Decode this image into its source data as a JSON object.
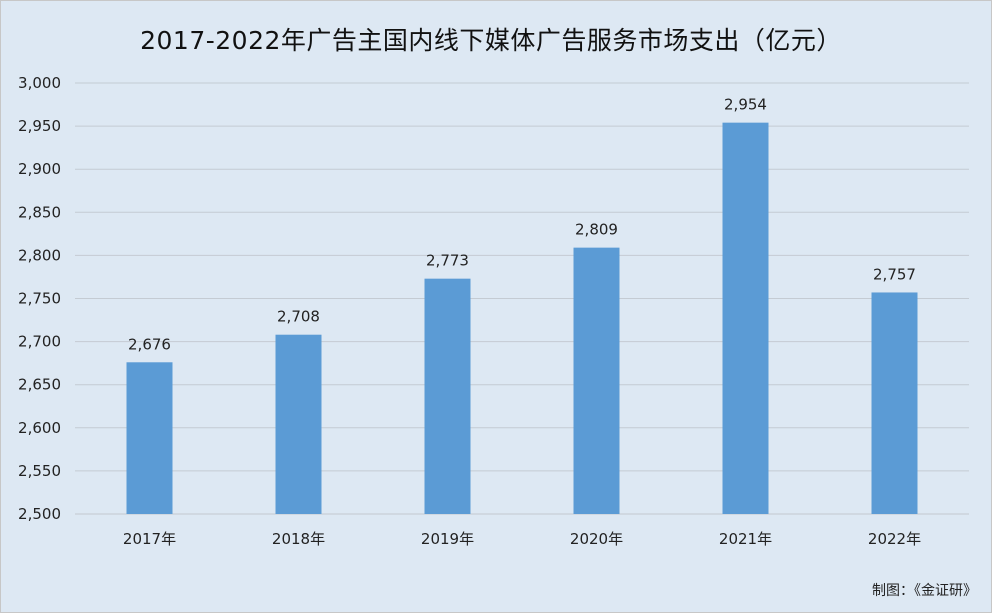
{
  "chart_data": {
    "type": "bar",
    "title": "2017-2022年广告主国内线下媒体广告服务市场支出（亿元）",
    "categories": [
      "2017年",
      "2018年",
      "2019年",
      "2020年",
      "2021年",
      "2022年"
    ],
    "values": [
      2676,
      2708,
      2773,
      2809,
      2954,
      2757
    ],
    "data_labels": [
      "2,676",
      "2,708",
      "2,773",
      "2,809",
      "2,954",
      "2,757"
    ],
    "ylim": [
      2500,
      3000
    ],
    "yticks": [
      "2,500",
      "2,550",
      "2,600",
      "2,650",
      "2,700",
      "2,750",
      "2,800",
      "2,850",
      "2,900",
      "2,950",
      "3,000"
    ],
    "ytick_values": [
      2500,
      2550,
      2600,
      2650,
      2700,
      2750,
      2800,
      2850,
      2900,
      2950,
      3000
    ],
    "grid": true,
    "legend": "none",
    "bar_color": "#5b9bd5"
  },
  "footer": {
    "credit": "制图：《金证研》"
  }
}
